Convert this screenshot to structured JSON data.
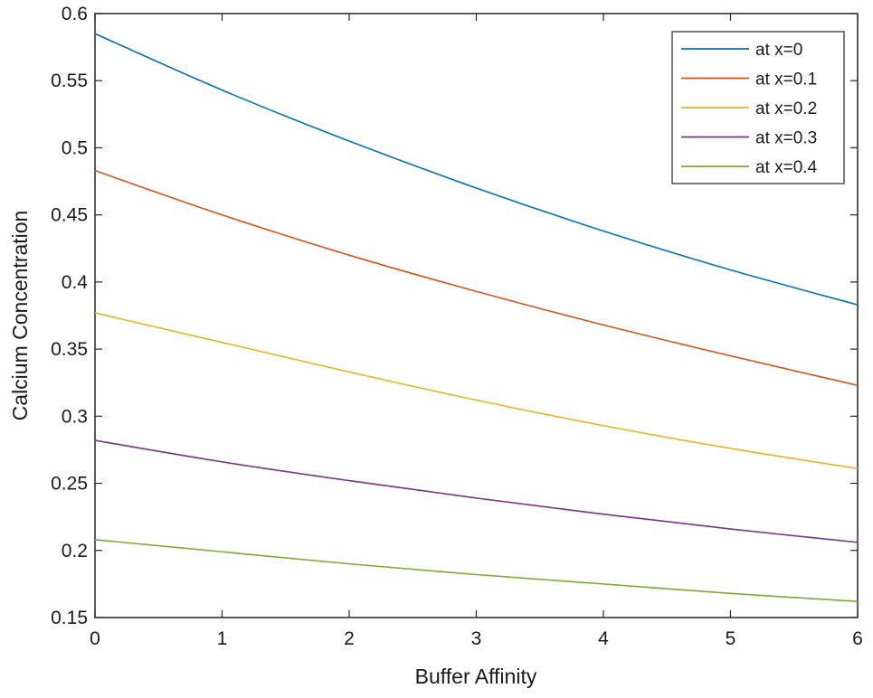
{
  "chart_data": {
    "type": "line",
    "title": "",
    "xlabel": "Buffer Affinity",
    "ylabel": "Calcium Concentration",
    "xlim": [
      0,
      6
    ],
    "ylim": [
      0.15,
      0.6
    ],
    "xticks": [
      "0",
      "1",
      "2",
      "3",
      "4",
      "5",
      "6"
    ],
    "yticks": [
      "0.15",
      "0.2",
      "0.25",
      "0.3",
      "0.35",
      "0.4",
      "0.45",
      "0.5",
      "0.55",
      "0.6"
    ],
    "grid": false,
    "legend_position": "top-right",
    "x": [
      0,
      1,
      2,
      3,
      4,
      5,
      6
    ],
    "series": [
      {
        "name": "at x=0",
        "color": "#0072BD",
        "values": [
          0.585,
          0.543,
          0.505,
          0.47,
          0.438,
          0.409,
          0.383
        ]
      },
      {
        "name": "at x=0.1",
        "color": "#D95319",
        "values": [
          0.483,
          0.45,
          0.42,
          0.393,
          0.368,
          0.345,
          0.323
        ]
      },
      {
        "name": "at x=0.2",
        "color": "#EDB120",
        "values": [
          0.377,
          0.355,
          0.333,
          0.312,
          0.293,
          0.276,
          0.261
        ]
      },
      {
        "name": "at x=0.3",
        "color": "#7E2F8E",
        "values": [
          0.282,
          0.266,
          0.252,
          0.239,
          0.227,
          0.216,
          0.206
        ]
      },
      {
        "name": "at x=0.4",
        "color": "#77AC30",
        "values": [
          0.208,
          0.199,
          0.19,
          0.182,
          0.175,
          0.168,
          0.162
        ]
      }
    ]
  }
}
